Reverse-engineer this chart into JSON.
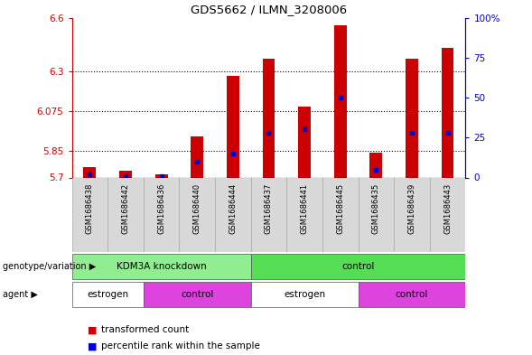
{
  "title": "GDS5662 / ILMN_3208006",
  "samples": [
    "GSM1686438",
    "GSM1686442",
    "GSM1686436",
    "GSM1686440",
    "GSM1686444",
    "GSM1686437",
    "GSM1686441",
    "GSM1686445",
    "GSM1686435",
    "GSM1686439",
    "GSM1686443"
  ],
  "red_values": [
    5.76,
    5.74,
    5.72,
    5.93,
    6.27,
    6.37,
    6.1,
    6.56,
    5.84,
    6.37,
    6.43
  ],
  "blue_values": [
    2,
    1,
    1,
    10,
    15,
    28,
    30,
    50,
    5,
    28,
    28
  ],
  "ymin": 5.7,
  "ymax": 6.6,
  "yticks": [
    5.7,
    5.85,
    6.075,
    6.3,
    6.6
  ],
  "ytick_labels": [
    "5.7",
    "5.85",
    "6.075",
    "6.3",
    "6.6"
  ],
  "right_yticks": [
    0,
    25,
    50,
    75,
    100
  ],
  "right_ytick_labels": [
    "0",
    "25",
    "50",
    "75",
    "100%"
  ],
  "bar_color": "#cc0000",
  "dot_color": "#0000cc",
  "geno_colors": {
    "KDM3A knockdown": "#90ee90",
    "control": "#55dd55"
  },
  "agent_colors": {
    "estrogen": "#ffffff",
    "control": "#dd44dd"
  },
  "geno_groups": [
    {
      "label": "KDM3A knockdown",
      "start": 0,
      "end": 5
    },
    {
      "label": "control",
      "start": 5,
      "end": 11
    }
  ],
  "agent_groups": [
    {
      "label": "estrogen",
      "start": 0,
      "end": 2
    },
    {
      "label": "control",
      "start": 2,
      "end": 5
    },
    {
      "label": "estrogen",
      "start": 5,
      "end": 8
    },
    {
      "label": "control",
      "start": 8,
      "end": 11
    }
  ],
  "legend_items": [
    {
      "label": "transformed count",
      "color": "#cc0000"
    },
    {
      "label": "percentile rank within the sample",
      "color": "#0000cc"
    }
  ],
  "left_label_geno": "genotype/variation",
  "left_label_agent": "agent"
}
